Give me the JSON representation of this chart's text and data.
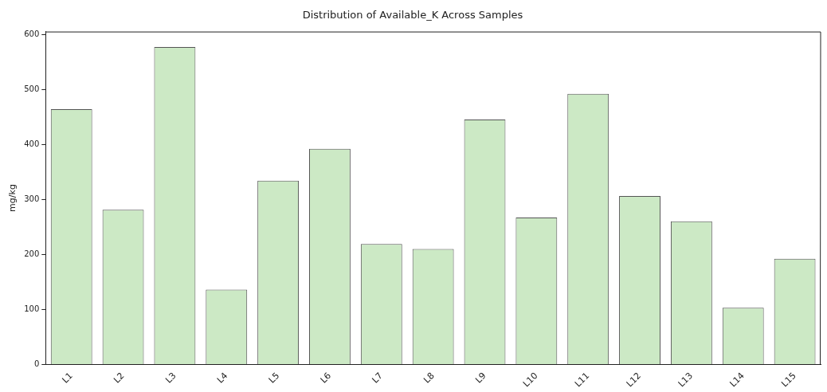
{
  "chart_data": {
    "type": "bar",
    "title": "Distribution of Available_K Across Samples",
    "ylabel": "mg/kg",
    "categories": [
      "L1",
      "L2",
      "L3",
      "L4",
      "L5",
      "L6",
      "L7",
      "L8",
      "L9",
      "L10",
      "L11",
      "L12",
      "L13",
      "L14",
      "L15"
    ],
    "values": [
      464,
      281,
      577,
      136,
      334,
      392,
      219,
      210,
      445,
      267,
      492,
      306,
      260,
      103,
      192
    ],
    "color": "#cce9c5",
    "ylim": [
      0,
      605
    ],
    "yticks": [
      0,
      100,
      200,
      300,
      400,
      500,
      600
    ],
    "grid": false,
    "legend": false
  }
}
